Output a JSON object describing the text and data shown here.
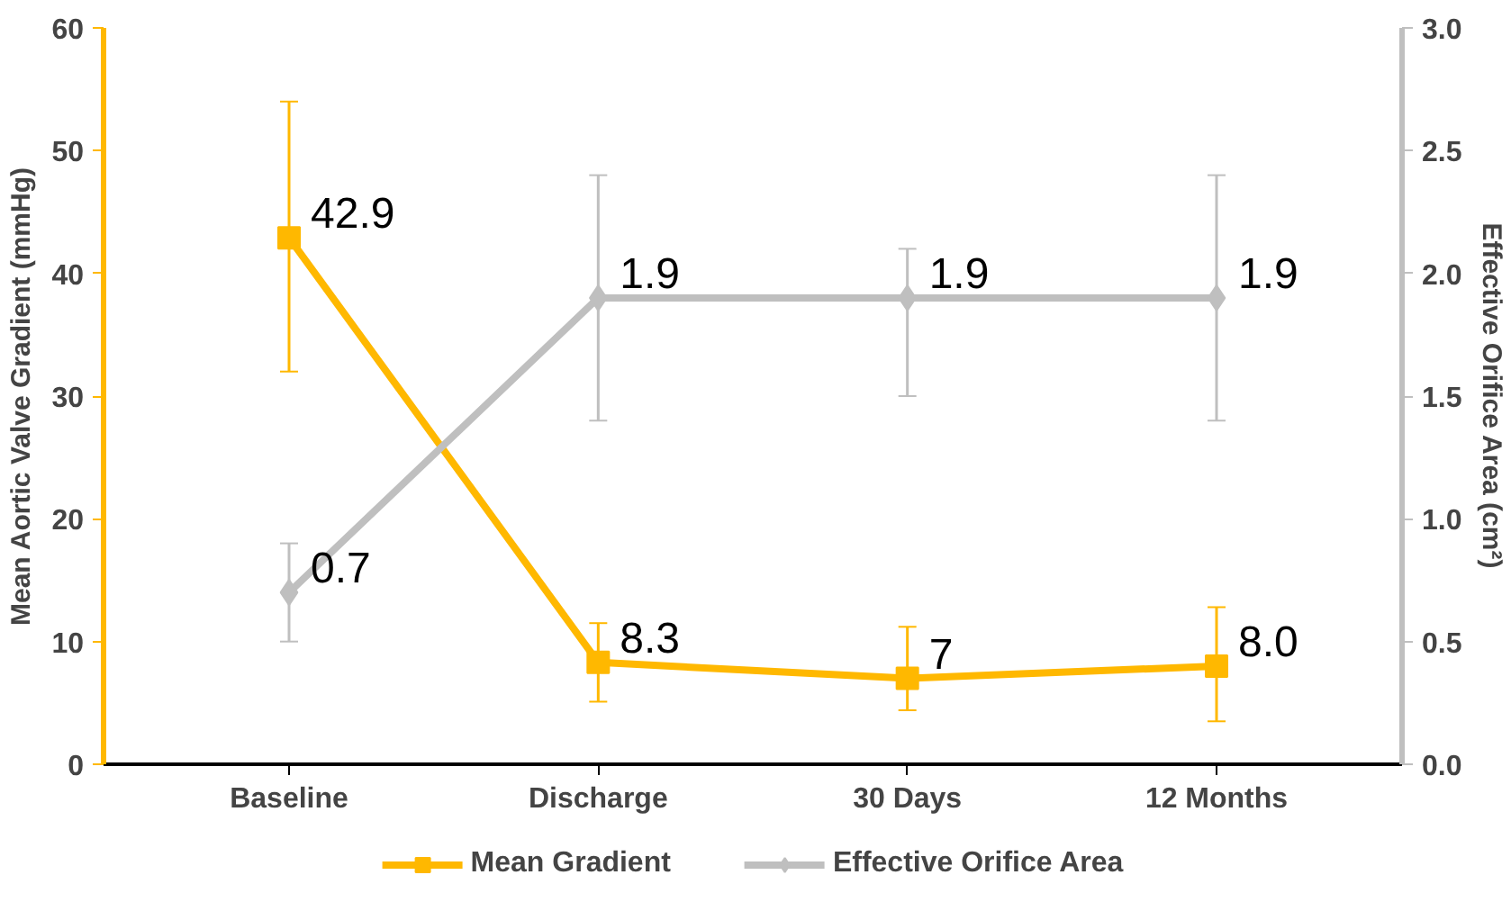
{
  "chart_data": {
    "type": "line",
    "categories": [
      "Baseline",
      "Discharge",
      "30 Days",
      "12 Months"
    ],
    "ylabel": "Mean Aortic Valve Gradient (mmHg)",
    "y2label": "Effective Orifice Area (cm²)",
    "ylim": [
      0,
      60
    ],
    "yticks": [
      0,
      10,
      20,
      30,
      40,
      50,
      60
    ],
    "y2lim": [
      0,
      3.0
    ],
    "y2ticks": [
      {
        "value": 0,
        "label": "0.0"
      },
      {
        "value": 0.5,
        "label": "0.5"
      },
      {
        "value": 1,
        "label": "1.0"
      },
      {
        "value": 1.5,
        "label": "1.5"
      },
      {
        "value": 2,
        "label": "2.0"
      },
      {
        "value": 2.5,
        "label": "2.5"
      },
      {
        "value": 3,
        "label": "3.0"
      }
    ],
    "series": [
      {
        "name": "Mean Gradient",
        "color": "#ffb800",
        "marker": "square",
        "values": [
          42.9,
          8.3,
          7,
          8.0
        ],
        "value_labels": [
          "42.9",
          "8.3",
          "7",
          "8.0"
        ],
        "errors": [
          [
            32,
            54
          ],
          [
            5.1,
            11.5
          ],
          [
            4.4,
            11.2
          ],
          [
            3.5,
            12.8
          ]
        ]
      },
      {
        "name": "Effective Orifice Area",
        "color": "#bfbfbf",
        "marker": "diamond",
        "axis": "y2",
        "values": [
          0.7,
          1.9,
          1.9,
          1.9
        ],
        "value_labels": [
          "0.7",
          "1.9",
          "1.9",
          "1.9"
        ],
        "errors": [
          [
            0.5,
            0.9
          ],
          [
            1.4,
            2.4
          ],
          [
            1.5,
            2.1
          ],
          [
            1.4,
            2.4
          ]
        ]
      }
    ],
    "grid": false,
    "legend": "bottom",
    "line_style": "solid"
  }
}
